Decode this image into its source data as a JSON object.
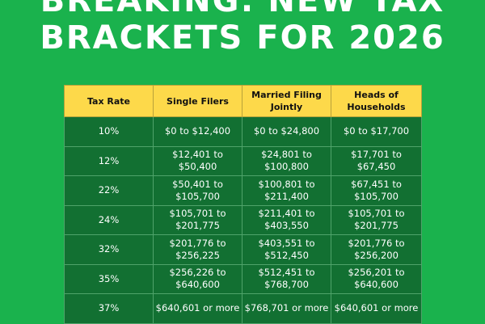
{
  "headline": {
    "line1": "BREAKING: NEW TAX",
    "line2": "BRACKETS FOR 2026"
  },
  "table": {
    "headers": [
      "Tax Rate",
      "Single Filers",
      "Married Filing Jointly",
      "Heads of Households"
    ],
    "rows": [
      [
        "10%",
        "$0 to $12,400",
        "$0 to $24,800",
        "$0 to $17,700"
      ],
      [
        "12%",
        "$12,401 to $50,400",
        "$24,801 to $100,800",
        "$17,701 to $67,450"
      ],
      [
        "22%",
        "$50,401 to $105,700",
        "$100,801 to $211,400",
        "$67,451 to $105,700"
      ],
      [
        "24%",
        "$105,701 to $201,775",
        "$211,401 to $403,550",
        "$105,701 to $201,775"
      ],
      [
        "32%",
        "$201,776 to $256,225",
        "$403,551 to $512,450",
        "$201,776 to $256,200"
      ],
      [
        "35%",
        "$256,226 to $640,600",
        "$512,451 to $768,700",
        "$256,201 to $640,600"
      ],
      [
        "37%",
        "$640,601 or more",
        "$768,701 or more",
        "$640,601 or more"
      ]
    ]
  },
  "colors": {
    "background": "#1ab24d",
    "header_fill": "#fdd94a",
    "cell_fill": "#127032"
  }
}
